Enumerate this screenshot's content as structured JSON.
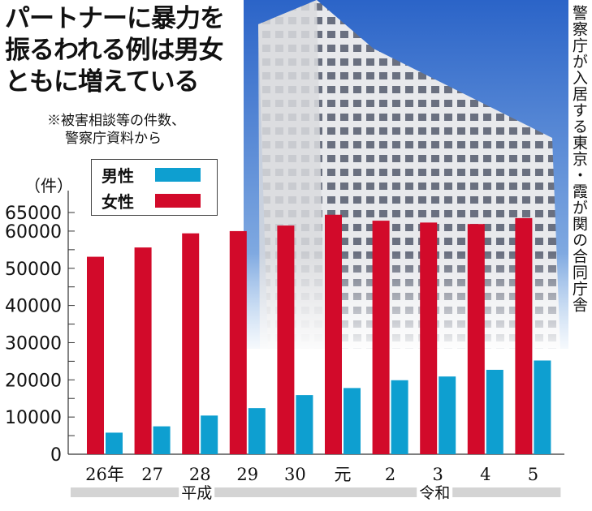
{
  "title_lines": [
    "パートナーに暴力を",
    "振るわれる例は男女",
    "ともに増えている"
  ],
  "note_lines": [
    "※被害相談等の件数、",
    "警察庁資料から"
  ],
  "photo_caption": "警察庁が入居する東京・霞が関の合同庁舎",
  "chart_data": {
    "type": "bar",
    "unit_label": "（件）",
    "categories": [
      "26年",
      "27",
      "28",
      "29",
      "30",
      "元",
      "2",
      "3",
      "4",
      "5"
    ],
    "eras": [
      {
        "label": "平成",
        "categories": [
          "26年",
          "27",
          "28",
          "29",
          "30"
        ]
      },
      {
        "label": "令和",
        "categories": [
          "元",
          "2",
          "3",
          "4",
          "5"
        ]
      }
    ],
    "series": [
      {
        "name": "男性",
        "color": "#0e9fd0",
        "values": [
          5800,
          7500,
          10400,
          12400,
          15900,
          17800,
          19900,
          20900,
          22700,
          25200
        ]
      },
      {
        "name": "女性",
        "color": "#d20a2a",
        "values": [
          53100,
          55600,
          59400,
          60000,
          61500,
          64400,
          62800,
          62300,
          61900,
          63500
        ]
      }
    ],
    "yticks": [
      0,
      10000,
      20000,
      30000,
      40000,
      50000,
      60000,
      65000
    ],
    "ylim": [
      0,
      65000
    ],
    "legend": "top-left",
    "grid": false
  }
}
